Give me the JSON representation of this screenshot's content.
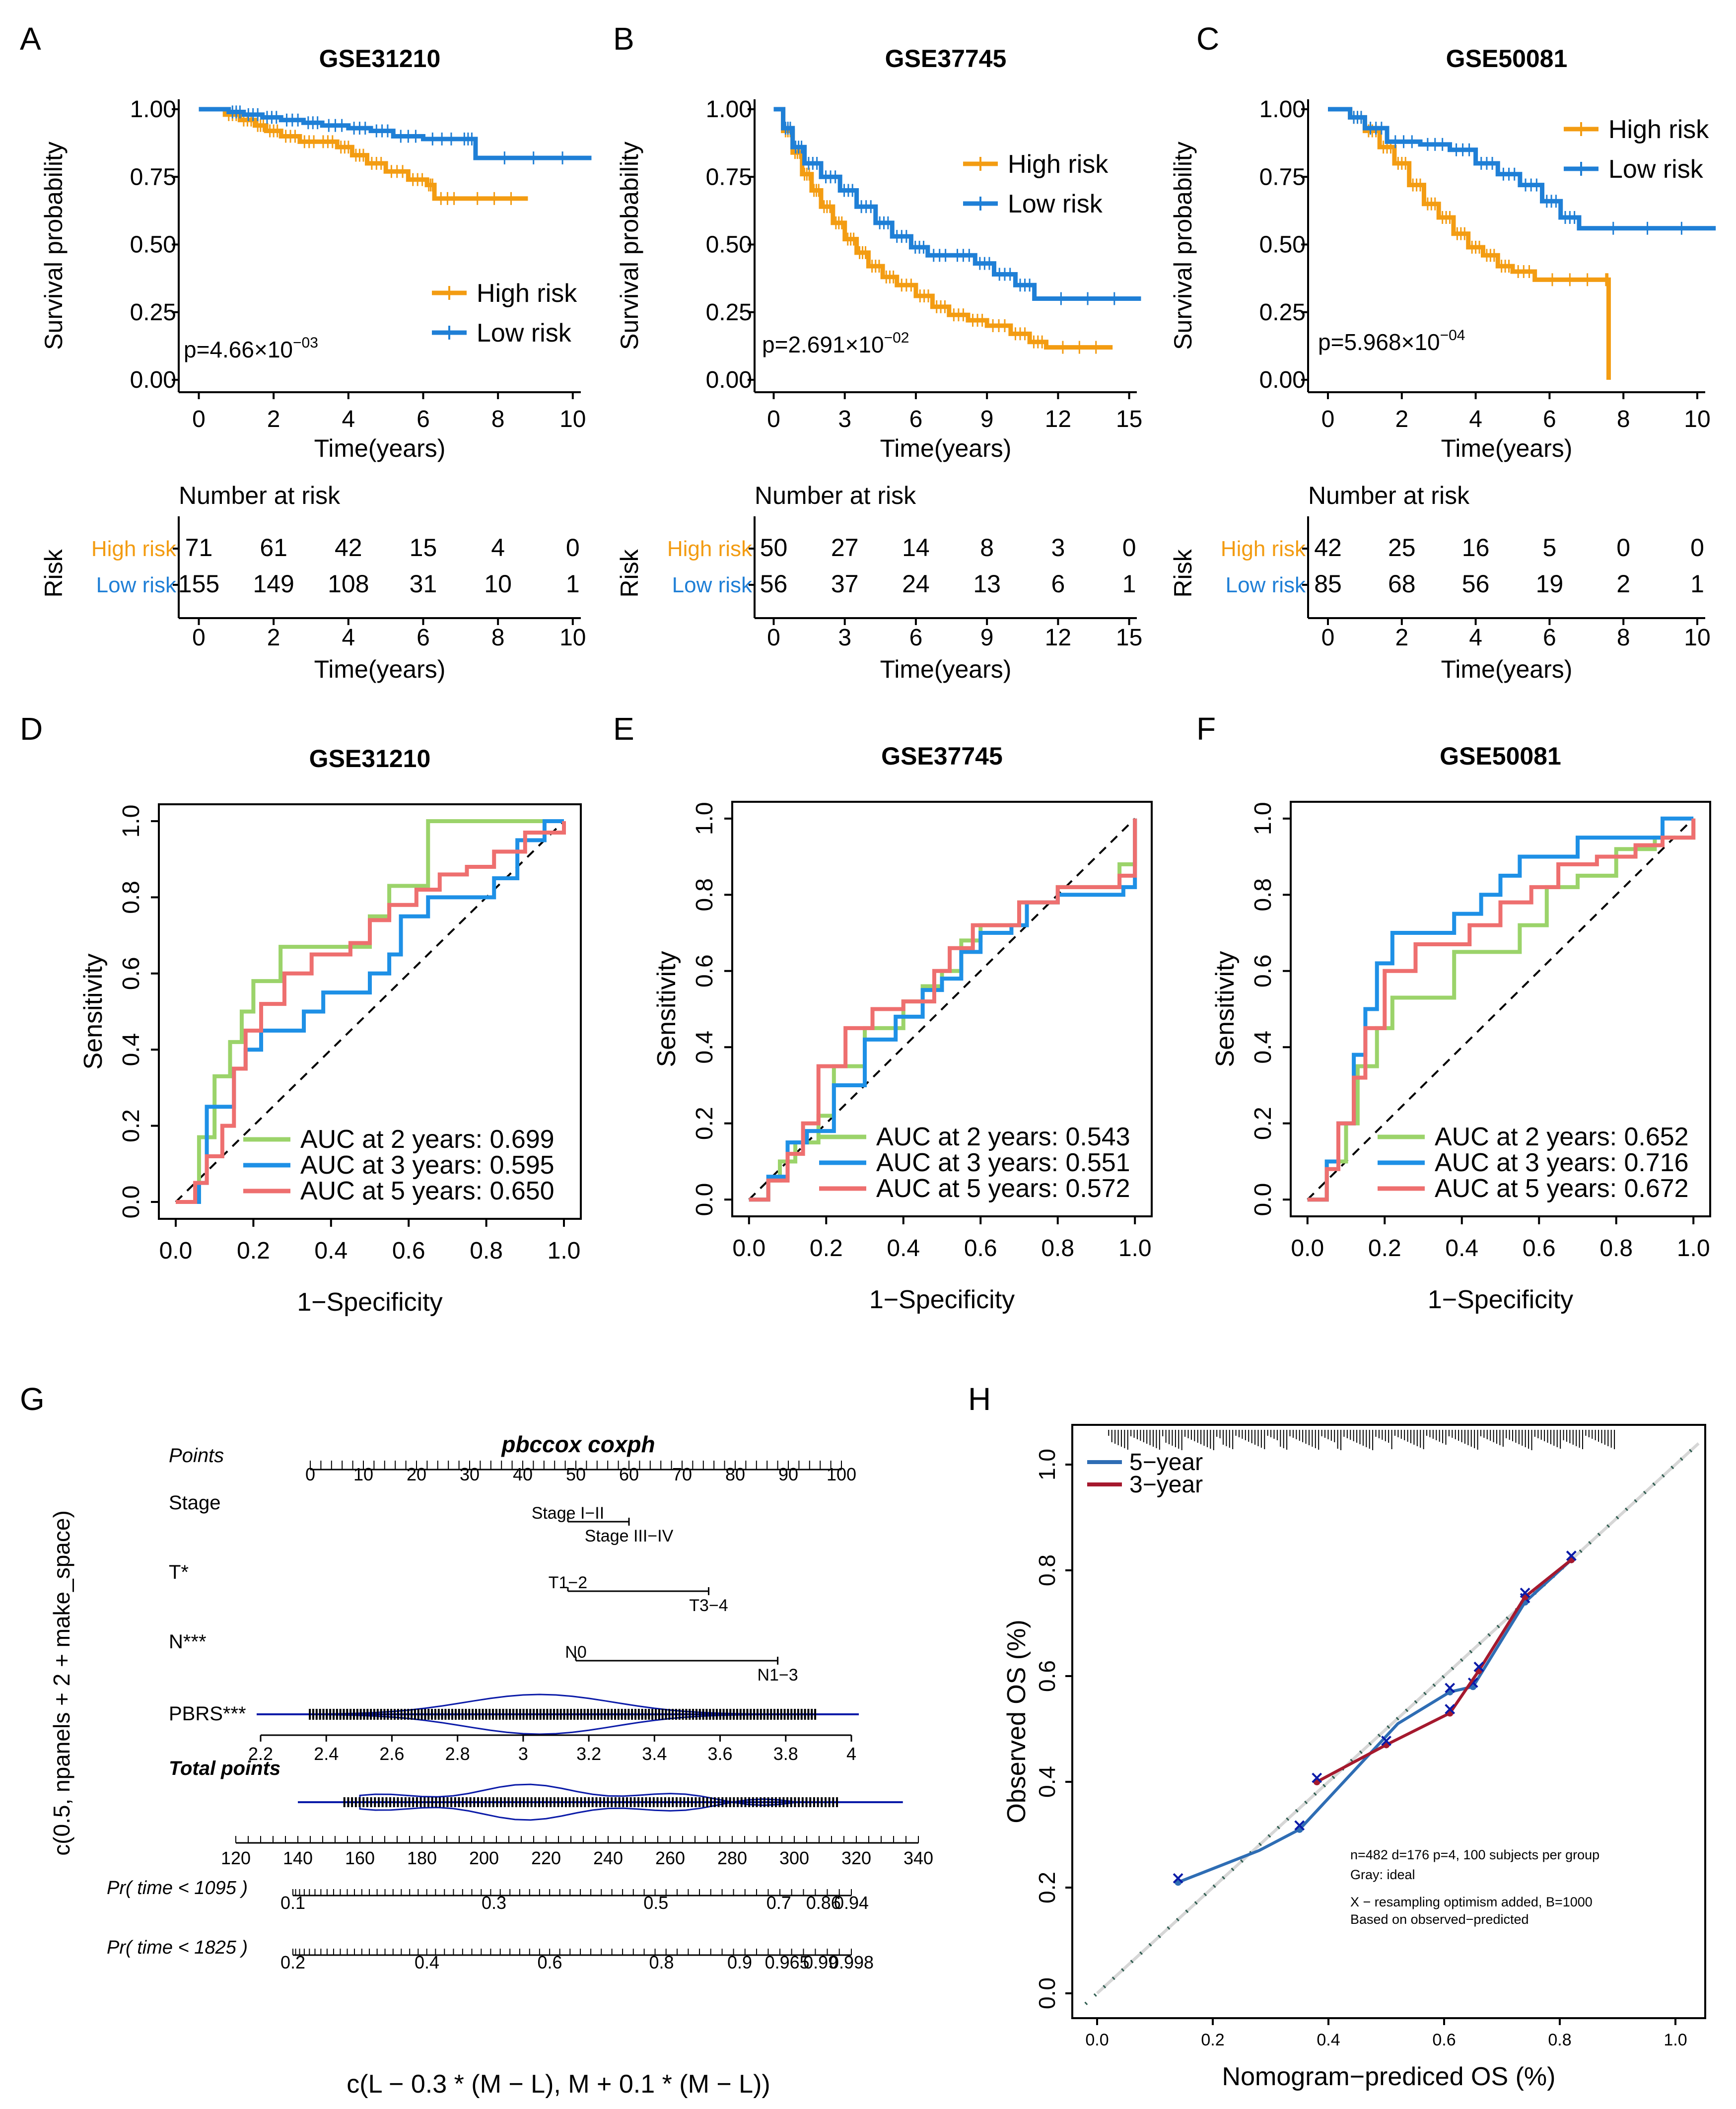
{
  "colors": {
    "high": "#F39C12",
    "low": "#1F7FD6",
    "green": "#9BD36A",
    "blue": "#1E90E6",
    "pink": "#EE6F6F",
    "navy": "#0B1BA8",
    "cal5": "#2E6DB4",
    "cal3": "#A5192E",
    "ideal": "#2F5D50"
  },
  "chart_data": [
    {
      "id": "A",
      "panel_label": "A",
      "type": "line",
      "subtype": "kaplan-meier",
      "title": "GSE31210",
      "xlabel": "Time(years)",
      "ylabel": "Survival probability",
      "xlim": [
        0,
        10
      ],
      "xticks": [
        "0",
        "2",
        "4",
        "6",
        "8",
        "10"
      ],
      "ylim": [
        0,
        1
      ],
      "yticks": [
        "0.00",
        "0.25",
        "0.50",
        "0.75",
        "1.00"
      ],
      "legend": [
        "High risk",
        "Low risk"
      ],
      "pvalue": {
        "prefix": "p=4.66×10",
        "exp": "−03"
      },
      "series": [
        {
          "name": "High risk",
          "x": [
            0,
            0.7,
            1.1,
            1.5,
            1.8,
            2.2,
            2.7,
            3.2,
            3.7,
            4.1,
            4.5,
            5.0,
            5.6,
            6.1,
            6.3,
            7.0,
            8.8
          ],
          "y": [
            1,
            0.98,
            0.96,
            0.94,
            0.92,
            0.9,
            0.88,
            0.88,
            0.86,
            0.83,
            0.8,
            0.77,
            0.74,
            0.72,
            0.67,
            0.67,
            0.67
          ]
        },
        {
          "name": "Low risk",
          "x": [
            0,
            0.8,
            1.2,
            1.7,
            2.2,
            2.8,
            3.3,
            4.0,
            4.6,
            5.2,
            6.0,
            7.0,
            7.4,
            10.5
          ],
          "y": [
            1,
            0.99,
            0.98,
            0.97,
            0.96,
            0.95,
            0.94,
            0.93,
            0.92,
            0.9,
            0.89,
            0.89,
            0.82,
            0.82
          ]
        }
      ],
      "risk_table": {
        "title": "Number at risk",
        "row_title": "Risk",
        "xlabel": "Time(years)",
        "rows": [
          {
            "label": "High risk",
            "values": [
              "71",
              "61",
              "42",
              "15",
              "4",
              "0"
            ]
          },
          {
            "label": "Low  risk",
            "values": [
              "155",
              "149",
              "108",
              "31",
              "10",
              "1"
            ]
          }
        ]
      }
    },
    {
      "id": "B",
      "panel_label": "B",
      "type": "line",
      "subtype": "kaplan-meier",
      "title": "GSE37745",
      "xlabel": "Time(years)",
      "ylabel": "Survival probability",
      "xlim": [
        0,
        15
      ],
      "xticks": [
        "0",
        "3",
        "6",
        "9",
        "12",
        "15"
      ],
      "ylim": [
        0,
        1
      ],
      "yticks": [
        "0.00",
        "0.25",
        "0.50",
        "0.75",
        "1.00"
      ],
      "legend": [
        "High risk",
        "Low risk"
      ],
      "pvalue": {
        "prefix": "p=2.691×10",
        "exp": "−02"
      },
      "series": [
        {
          "name": "High risk",
          "x": [
            0,
            0.4,
            0.8,
            1.2,
            1.6,
            2.0,
            2.5,
            3.0,
            3.5,
            4.0,
            4.6,
            5.2,
            6.0,
            6.7,
            7.4,
            8.2,
            9.0,
            10.0,
            10.8,
            11.5,
            14.3
          ],
          "y": [
            1,
            0.92,
            0.84,
            0.76,
            0.7,
            0.64,
            0.58,
            0.52,
            0.47,
            0.42,
            0.38,
            0.35,
            0.31,
            0.27,
            0.24,
            0.22,
            0.2,
            0.17,
            0.14,
            0.12,
            0.12
          ]
        },
        {
          "name": "Low risk",
          "x": [
            0,
            0.4,
            0.8,
            1.3,
            2.0,
            2.8,
            3.5,
            4.3,
            5.0,
            5.8,
            6.5,
            7.5,
            8.5,
            9.3,
            10.2,
            11.0,
            15.5
          ],
          "y": [
            1,
            0.93,
            0.86,
            0.8,
            0.75,
            0.7,
            0.64,
            0.58,
            0.53,
            0.49,
            0.46,
            0.46,
            0.43,
            0.39,
            0.35,
            0.3,
            0.3
          ]
        }
      ],
      "risk_table": {
        "title": "Number at risk",
        "row_title": "Risk",
        "xlabel": "Time(years)",
        "rows": [
          {
            "label": "High risk",
            "values": [
              "50",
              "27",
              "14",
              "8",
              "3",
              "0"
            ]
          },
          {
            "label": "Low  risk",
            "values": [
              "56",
              "37",
              "24",
              "13",
              "6",
              "1"
            ]
          }
        ]
      }
    },
    {
      "id": "C",
      "panel_label": "C",
      "type": "line",
      "subtype": "kaplan-meier",
      "title": "GSE50081",
      "xlabel": "Time(years)",
      "ylabel": "Survival probability",
      "xlim": [
        0,
        10
      ],
      "xticks": [
        "0",
        "2",
        "4",
        "6",
        "8",
        "10"
      ],
      "ylim": [
        0,
        1
      ],
      "yticks": [
        "0.00",
        "0.25",
        "0.50",
        "0.75",
        "1.00"
      ],
      "legend": [
        "High risk",
        "Low risk"
      ],
      "pvalue": {
        "prefix": "p=5.968×10",
        "exp": "−04"
      },
      "series": [
        {
          "name": "High risk",
          "x": [
            0,
            0.6,
            1.0,
            1.4,
            1.8,
            2.2,
            2.6,
            3.0,
            3.4,
            3.8,
            4.2,
            4.6,
            5.0,
            5.6,
            7.5,
            7.6
          ],
          "y": [
            1,
            0.97,
            0.92,
            0.86,
            0.8,
            0.72,
            0.65,
            0.6,
            0.54,
            0.49,
            0.46,
            0.42,
            0.4,
            0.37,
            0.37,
            0.0
          ]
        },
        {
          "name": "Low risk",
          "x": [
            0,
            0.6,
            1.0,
            1.6,
            2.5,
            3.3,
            4.0,
            4.6,
            5.2,
            5.8,
            6.3,
            6.8,
            10.5
          ],
          "y": [
            1,
            0.97,
            0.93,
            0.88,
            0.87,
            0.85,
            0.8,
            0.76,
            0.72,
            0.66,
            0.6,
            0.56,
            0.56
          ]
        }
      ],
      "risk_table": {
        "title": "Number at risk",
        "row_title": "Risk",
        "xlabel": "Time(years)",
        "rows": [
          {
            "label": "High risk",
            "values": [
              "42",
              "25",
              "16",
              "5",
              "0",
              "0"
            ]
          },
          {
            "label": "Low  risk",
            "values": [
              "85",
              "68",
              "56",
              "19",
              "2",
              "1"
            ]
          }
        ]
      }
    },
    {
      "id": "D",
      "panel_label": "D",
      "type": "line",
      "subtype": "roc",
      "title": "GSE31210",
      "xlabel": "1−Specificity",
      "ylabel": "Sensitivity",
      "xlim": [
        0,
        1
      ],
      "ylim": [
        0,
        1
      ],
      "ticks": [
        "0.0",
        "0.2",
        "0.4",
        "0.6",
        "0.8",
        "1.0"
      ],
      "series": [
        {
          "name": "AUC at 2 years: 0.699",
          "x": [
            0,
            0.06,
            0.06,
            0.1,
            0.1,
            0.14,
            0.17,
            0.2,
            0.22,
            0.27,
            0.33,
            0.5,
            0.55,
            0.62,
            0.65,
            1.0
          ],
          "y": [
            0,
            0.08,
            0.17,
            0.2,
            0.33,
            0.42,
            0.5,
            0.58,
            0.58,
            0.67,
            0.67,
            0.75,
            0.83,
            0.83,
            1.0,
            1.0
          ]
        },
        {
          "name": "AUC at 3 years: 0.595",
          "x": [
            0,
            0.06,
            0.08,
            0.08,
            0.12,
            0.15,
            0.18,
            0.22,
            0.25,
            0.33,
            0.38,
            0.42,
            0.5,
            0.55,
            0.58,
            0.65,
            0.72,
            0.82,
            0.88,
            0.95,
            1.0
          ],
          "y": [
            0,
            0.05,
            0.1,
            0.25,
            0.25,
            0.35,
            0.4,
            0.45,
            0.45,
            0.5,
            0.55,
            0.55,
            0.6,
            0.65,
            0.75,
            0.8,
            0.8,
            0.85,
            0.95,
            1.0,
            1.0
          ]
        },
        {
          "name": "AUC at 5 years: 0.650",
          "x": [
            0,
            0.05,
            0.08,
            0.12,
            0.15,
            0.18,
            0.22,
            0.28,
            0.35,
            0.45,
            0.5,
            0.55,
            0.62,
            0.68,
            0.75,
            0.82,
            0.9,
            1.0
          ],
          "y": [
            0,
            0.05,
            0.12,
            0.2,
            0.35,
            0.45,
            0.52,
            0.6,
            0.65,
            0.68,
            0.74,
            0.78,
            0.82,
            0.86,
            0.88,
            0.92,
            0.97,
            1.0
          ]
        }
      ]
    },
    {
      "id": "E",
      "panel_label": "E",
      "type": "line",
      "subtype": "roc",
      "title": "GSE37745",
      "xlabel": "1−Specificity",
      "ylabel": "Sensitivity",
      "xlim": [
        0,
        1
      ],
      "ylim": [
        0,
        1
      ],
      "ticks": [
        "0.0",
        "0.2",
        "0.4",
        "0.6",
        "0.8",
        "1.0"
      ],
      "series": [
        {
          "name": "AUC at 2 years: 0.543",
          "x": [
            0,
            0.05,
            0.08,
            0.12,
            0.18,
            0.22,
            0.3,
            0.4,
            0.45,
            0.5,
            0.55,
            0.6,
            0.7,
            0.8,
            0.9,
            0.96,
            1.0
          ],
          "y": [
            0,
            0.05,
            0.1,
            0.15,
            0.22,
            0.35,
            0.45,
            0.52,
            0.56,
            0.6,
            0.68,
            0.72,
            0.78,
            0.82,
            0.82,
            0.88,
            1.0
          ]
        },
        {
          "name": "AUC at 3 years: 0.551",
          "x": [
            0,
            0.05,
            0.1,
            0.15,
            0.22,
            0.3,
            0.38,
            0.45,
            0.5,
            0.55,
            0.6,
            0.68,
            0.72,
            0.8,
            0.9,
            0.97,
            1.0
          ],
          "y": [
            0,
            0.06,
            0.15,
            0.18,
            0.3,
            0.42,
            0.48,
            0.55,
            0.58,
            0.65,
            0.7,
            0.72,
            0.78,
            0.8,
            0.8,
            0.82,
            1.0
          ]
        },
        {
          "name": "AUC at 5 years: 0.572",
          "x": [
            0,
            0.05,
            0.1,
            0.14,
            0.18,
            0.25,
            0.32,
            0.4,
            0.48,
            0.52,
            0.58,
            0.62,
            0.7,
            0.8,
            0.9,
            0.96,
            1.0
          ],
          "y": [
            0,
            0.05,
            0.12,
            0.2,
            0.35,
            0.45,
            0.5,
            0.52,
            0.6,
            0.66,
            0.72,
            0.72,
            0.78,
            0.82,
            0.82,
            0.85,
            1.0
          ]
        }
      ]
    },
    {
      "id": "F",
      "panel_label": "F",
      "type": "line",
      "subtype": "roc",
      "title": "GSE50081",
      "xlabel": "1−Specificity",
      "ylabel": "Sensitivity",
      "xlim": [
        0,
        1
      ],
      "ylim": [
        0,
        1
      ],
      "ticks": [
        "0.0",
        "0.2",
        "0.4",
        "0.6",
        "0.8",
        "1.0"
      ],
      "series": [
        {
          "name": "AUC at 2 years: 0.652",
          "x": [
            0,
            0.05,
            0.1,
            0.13,
            0.18,
            0.22,
            0.35,
            0.38,
            0.5,
            0.55,
            0.62,
            0.7,
            0.8,
            0.9,
            1.0
          ],
          "y": [
            0,
            0.1,
            0.2,
            0.35,
            0.45,
            0.53,
            0.53,
            0.65,
            0.65,
            0.72,
            0.82,
            0.85,
            0.92,
            0.95,
            1.0
          ]
        },
        {
          "name": "AUC at 3 years: 0.716",
          "x": [
            0,
            0.05,
            0.08,
            0.12,
            0.15,
            0.18,
            0.22,
            0.3,
            0.38,
            0.45,
            0.5,
            0.55,
            0.7,
            0.78,
            0.92,
            1.0
          ],
          "y": [
            0,
            0.1,
            0.2,
            0.38,
            0.5,
            0.62,
            0.7,
            0.7,
            0.75,
            0.8,
            0.85,
            0.9,
            0.95,
            0.95,
            1.0,
            1.0
          ]
        },
        {
          "name": "AUC at 5 years: 0.672",
          "x": [
            0,
            0.05,
            0.08,
            0.12,
            0.15,
            0.2,
            0.28,
            0.35,
            0.42,
            0.5,
            0.58,
            0.65,
            0.75,
            0.85,
            0.92,
            1.0
          ],
          "y": [
            0,
            0.08,
            0.2,
            0.32,
            0.45,
            0.6,
            0.67,
            0.67,
            0.72,
            0.78,
            0.82,
            0.88,
            0.9,
            0.93,
            0.95,
            1.0
          ]
        }
      ]
    },
    {
      "id": "G",
      "panel_label": "G",
      "type": "table",
      "subtype": "nomogram",
      "title": "pbccox coxph",
      "ylabel": "c(0.5, npanels + 2 + make_space)",
      "xlabel": "c(L − 0.3 * (M − L), M + 0.1 * (M − L))",
      "points": {
        "label": "Points",
        "range": [
          0,
          100
        ],
        "ticks": [
          "0",
          "10",
          "20",
          "30",
          "40",
          "50",
          "60",
          "70",
          "80",
          "90",
          "100"
        ]
      },
      "rows": [
        {
          "label": "Stage",
          "start": 48.5,
          "end": 60,
          "start_label": "Stage I−II",
          "end_label": "Stage III−IV"
        },
        {
          "label": "T*",
          "start": 48.5,
          "end": 75,
          "start_label": "T1−2",
          "end_label": "T3−4"
        },
        {
          "label": "N***",
          "start": 50,
          "end": 88,
          "start_label": "N0",
          "end_label": "N1−3"
        }
      ],
      "pbrs": {
        "label": "PBRS***",
        "ticks": [
          "2.2",
          "2.4",
          "2.6",
          "2.8",
          "3",
          "3.2",
          "3.4",
          "3.6",
          "3.8",
          "4"
        ]
      },
      "total": {
        "label": "Total points",
        "ticks": [
          "120",
          "140",
          "160",
          "180",
          "200",
          "220",
          "240",
          "260",
          "280",
          "300",
          "320",
          "340"
        ]
      },
      "prob_rows": [
        {
          "label": "Pr( time < 1095 )",
          "ticks": [
            "0.1",
            "0.3",
            "0.5",
            "0.7",
            "0.86",
            "0.94"
          ]
        },
        {
          "label": "Pr( time < 1825 )",
          "ticks": [
            "0.2",
            "0.4",
            "0.6",
            "0.8",
            "0.9",
            "0.965",
            "0.99",
            "0.998"
          ]
        }
      ]
    },
    {
      "id": "H",
      "panel_label": "H",
      "type": "line",
      "subtype": "calibration",
      "xlabel": "Nomogram−prediced OS (%)",
      "ylabel": "Observed OS (%)",
      "xlim": [
        0,
        1
      ],
      "ylim": [
        0,
        1
      ],
      "xticks": [
        "0.0",
        "0.2",
        "0.4",
        "0.6",
        "0.8",
        "1.0"
      ],
      "yticks": [
        "0.0",
        "0.2",
        "0.4",
        "0.6",
        "0.8",
        "1.0"
      ],
      "legend": [
        "5−year",
        "3−year"
      ],
      "series": [
        {
          "name": "5−year",
          "x": [
            0.14,
            0.28,
            0.35,
            0.52,
            0.61,
            0.65,
            0.74,
            0.82
          ],
          "y": [
            0.21,
            0.27,
            0.31,
            0.51,
            0.57,
            0.58,
            0.74,
            0.82
          ]
        },
        {
          "name": "3−year",
          "x": [
            0.38,
            0.5,
            0.61,
            0.66,
            0.74,
            0.82
          ],
          "y": [
            0.4,
            0.47,
            0.53,
            0.61,
            0.75,
            0.82
          ]
        }
      ],
      "notes": [
        "n=482 d=176 p=4, 100 subjects per group",
        "Gray: ideal",
        "X − resampling optimism added, B=1000",
        "Based on observed−predicted"
      ]
    }
  ]
}
